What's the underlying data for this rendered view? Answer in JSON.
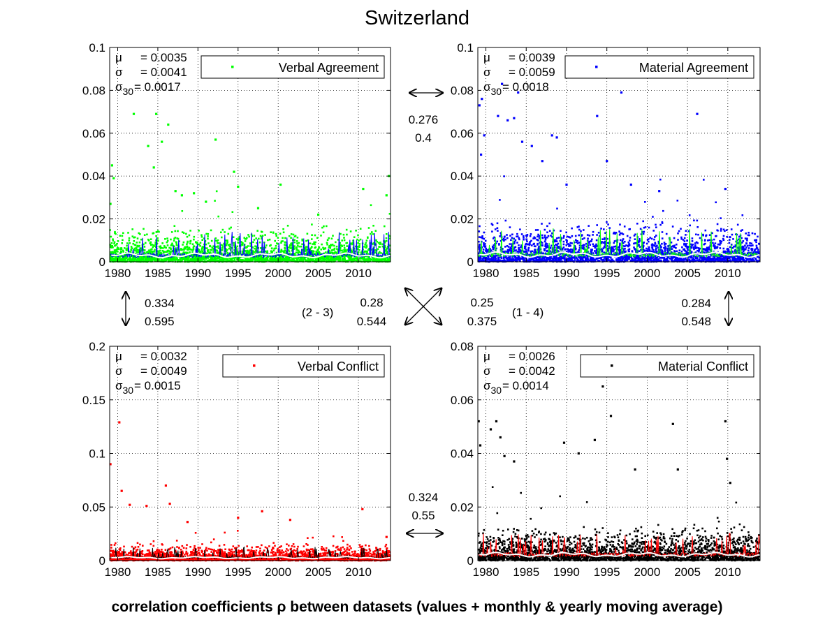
{
  "figure": {
    "title": "Switzerland",
    "caption": "correlation coefficients ρ between datasets (values + monthly & yearly moving average)"
  },
  "correlations": {
    "top": {
      "v1": "0.276",
      "v2": "0.4"
    },
    "left": {
      "v1": "0.334",
      "v2": "0.595"
    },
    "right": {
      "v1": "0.284",
      "v2": "0.548"
    },
    "bottom": {
      "v1": "0.324",
      "v2": "0.55"
    },
    "diag_23": {
      "label": "(2 - 3)",
      "v1": "0.28",
      "v2": "0.544"
    },
    "diag_14": {
      "label": "(1 - 4)",
      "v1": "0.25",
      "v2": "0.375"
    }
  },
  "chart_data": [
    {
      "type": "scatter",
      "panel": "top-left",
      "series": [
        {
          "name": "Verbal Agreement",
          "color": "#00ff00"
        }
      ],
      "overlay_colors": {
        "monthly_average": "#0000ff",
        "yearly_average": "#ffffff"
      },
      "stats": {
        "mu_label": "μ",
        "sigma_label": "σ",
        "sigma30_label": "σ30",
        "mu": "= 0.0035",
        "sigma": "= 0.0041",
        "sigma30": "= 0.0017"
      },
      "xlim": [
        1979,
        2014
      ],
      "ylim": [
        0,
        0.1
      ],
      "xticks": [
        "1980",
        "1985",
        "1990",
        "1995",
        "2000",
        "2005",
        "2010"
      ],
      "yticks": [
        "0",
        "0.02",
        "0.04",
        "0.06",
        "0.08",
        "0.1"
      ],
      "legend_position": "top-right",
      "grid": true,
      "mean": 0.0035,
      "outliers": [
        [
          1979.3,
          0.045
        ],
        [
          1979.5,
          0.039
        ],
        [
          1979.1,
          0.027
        ],
        [
          1982.0,
          0.069
        ],
        [
          1983.8,
          0.054
        ],
        [
          1984.5,
          0.044
        ],
        [
          1984.8,
          0.069
        ],
        [
          1985.5,
          0.056
        ],
        [
          1986.3,
          0.064
        ],
        [
          1987.2,
          0.033
        ],
        [
          1988.0,
          0.031
        ],
        [
          1989.5,
          0.032
        ],
        [
          1991.0,
          0.028
        ],
        [
          1992.2,
          0.057
        ],
        [
          1994.5,
          0.042
        ],
        [
          1995.0,
          0.035
        ],
        [
          1997.5,
          0.025
        ],
        [
          2000.3,
          0.036
        ],
        [
          2005.0,
          0.022
        ],
        [
          2010.6,
          0.034
        ],
        [
          2013.8,
          0.04
        ],
        [
          2013.5,
          0.031
        ]
      ]
    },
    {
      "type": "scatter",
      "panel": "top-right",
      "series": [
        {
          "name": "Material Agreement",
          "color": "#0000ff"
        }
      ],
      "overlay_colors": {
        "monthly_average": "#00ff00",
        "yearly_average": "#ffffff"
      },
      "stats": {
        "mu_label": "μ",
        "sigma_label": "σ",
        "sigma30_label": "σ30",
        "mu": "= 0.0039",
        "sigma": "= 0.0059",
        "sigma30": "= 0.0018"
      },
      "xlim": [
        1979,
        2014
      ],
      "ylim": [
        0,
        0.1
      ],
      "xticks": [
        "1980",
        "1985",
        "1990",
        "1995",
        "2000",
        "2005",
        "2010"
      ],
      "yticks": [
        "0",
        "0.02",
        "0.04",
        "0.06",
        "0.08",
        "0.1"
      ],
      "legend_position": "top-right",
      "grid": true,
      "mean": 0.0039,
      "outliers": [
        [
          1979.2,
          0.073
        ],
        [
          1979.5,
          0.076
        ],
        [
          1979.8,
          0.059
        ],
        [
          1979.4,
          0.05
        ],
        [
          1981.5,
          0.068
        ],
        [
          1982.0,
          0.083
        ],
        [
          1982.7,
          0.066
        ],
        [
          1983.5,
          0.067
        ],
        [
          1984.0,
          0.079
        ],
        [
          1984.5,
          0.056
        ],
        [
          1985.7,
          0.054
        ],
        [
          1987.0,
          0.047
        ],
        [
          1988.2,
          0.059
        ],
        [
          1988.8,
          0.058
        ],
        [
          1990.0,
          0.036
        ],
        [
          1993.8,
          0.068
        ],
        [
          1995.0,
          0.047
        ],
        [
          1996.8,
          0.079
        ],
        [
          1998.0,
          0.036
        ],
        [
          2001.5,
          0.033
        ],
        [
          2006.2,
          0.069
        ],
        [
          2009.7,
          0.034
        ]
      ]
    },
    {
      "type": "scatter",
      "panel": "bottom-left",
      "series": [
        {
          "name": "Verbal Conflict",
          "color": "#ff0000"
        }
      ],
      "overlay_colors": {
        "monthly_average": "#000000",
        "yearly_average": "#ffffff"
      },
      "stats": {
        "mu_label": "μ",
        "sigma_label": "σ",
        "sigma30_label": "σ30",
        "mu": "= 0.0032",
        "sigma": "= 0.0049",
        "sigma30": "= 0.0015"
      },
      "xlim": [
        1979,
        2014
      ],
      "ylim": [
        0,
        0.2
      ],
      "xticks": [
        "1980",
        "1985",
        "1990",
        "1995",
        "2000",
        "2005",
        "2010"
      ],
      "yticks": [
        "0",
        "0.05",
        "0.1",
        "0.15",
        "0.2"
      ],
      "legend_position": "top-right",
      "grid": true,
      "mean": 0.0032,
      "outliers": [
        [
          1979.1,
          0.09
        ],
        [
          1980.2,
          0.129
        ],
        [
          1980.5,
          0.065
        ],
        [
          1981.5,
          0.052
        ],
        [
          1983.6,
          0.051
        ],
        [
          1986.0,
          0.07
        ],
        [
          1986.5,
          0.053
        ],
        [
          1988.7,
          0.036
        ],
        [
          1995.0,
          0.04
        ],
        [
          1998.0,
          0.046
        ],
        [
          2001.5,
          0.038
        ],
        [
          2010.5,
          0.048
        ],
        [
          2013.5,
          0.022
        ]
      ]
    },
    {
      "type": "scatter",
      "panel": "bottom-right",
      "series": [
        {
          "name": "Material Conflict",
          "color": "#000000"
        }
      ],
      "overlay_colors": {
        "monthly_average": "#ff0000",
        "yearly_average": "#ffffff"
      },
      "stats": {
        "mu_label": "μ",
        "sigma_label": "σ",
        "sigma30_label": "σ30",
        "mu": "= 0.0026",
        "sigma": "= 0.0042",
        "sigma30": "= 0.0014"
      },
      "xlim": [
        1979,
        2014
      ],
      "ylim": [
        0,
        0.08
      ],
      "xticks": [
        "1980",
        "1985",
        "1990",
        "1995",
        "2000",
        "2005",
        "2010"
      ],
      "yticks": [
        "0",
        "0.02",
        "0.04",
        "0.06",
        "0.08"
      ],
      "legend_position": "top-right",
      "grid": true,
      "mean": 0.0026,
      "outliers": [
        [
          1979.1,
          0.052
        ],
        [
          1979.3,
          0.043
        ],
        [
          1980.6,
          0.049
        ],
        [
          1981.3,
          0.052
        ],
        [
          1981.8,
          0.046
        ],
        [
          1982.3,
          0.039
        ],
        [
          1983.5,
          0.037
        ],
        [
          1989.7,
          0.044
        ],
        [
          1991.5,
          0.04
        ],
        [
          1993.5,
          0.045
        ],
        [
          1994.5,
          0.065
        ],
        [
          1994.9,
          0.069
        ],
        [
          1995.5,
          0.054
        ],
        [
          1998.5,
          0.034
        ],
        [
          2003.2,
          0.051
        ],
        [
          2003.8,
          0.034
        ],
        [
          2009.7,
          0.052
        ],
        [
          2009.9,
          0.038
        ],
        [
          2010.3,
          0.029
        ]
      ]
    }
  ]
}
